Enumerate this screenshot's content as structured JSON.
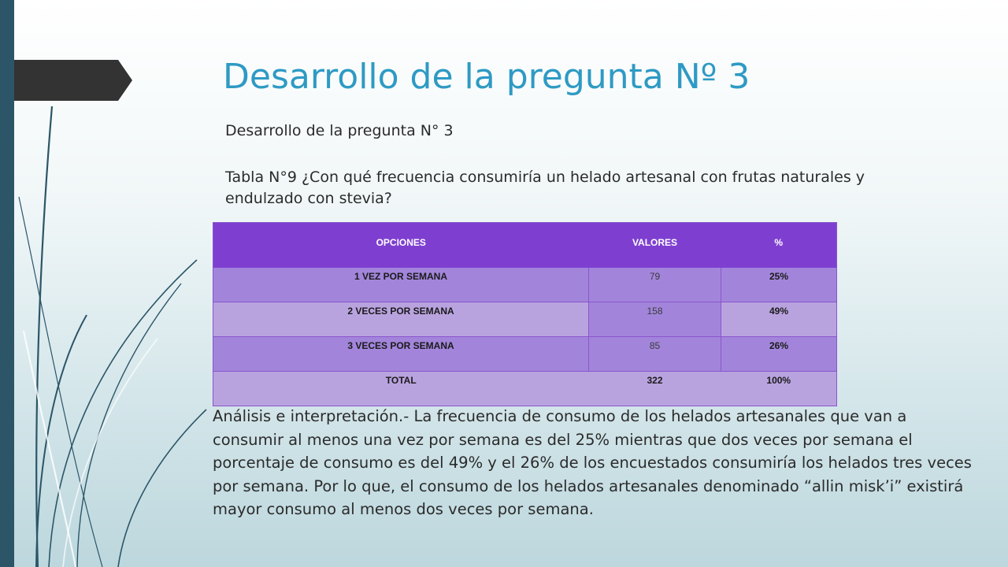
{
  "slide": {
    "title": "Desarrollo de la pregunta Nº 3",
    "subtitle": "Desarrollo de la pregunta N° 3",
    "caption": "Tabla N°9  ¿Con qué frecuencia consumiría un helado artesanal con frutas naturales y endulzado con stevia?"
  },
  "table": {
    "headers": [
      "OPCIONES",
      "VALORES",
      "%"
    ],
    "rows": [
      {
        "option": "1 VEZ POR SEMANA",
        "value": "79",
        "percent": "25%"
      },
      {
        "option": "2 VECES POR SEMANA",
        "value": "158",
        "percent": "49%"
      },
      {
        "option": "3 VECES POR SEMANA",
        "value": "85",
        "percent": "26%"
      }
    ],
    "total": {
      "label": "TOTAL",
      "value": "322",
      "percent": "100%"
    }
  },
  "analysis": "Análisis e interpretación.- La frecuencia de consumo de los helados artesanales que van a consumir al menos una vez por semana es del 25% mientras que dos veces por semana el porcentaje de consumo es del 49% y el 26% de los encuestados consumiría los helados tres veces por semana. Por lo que, el consumo de los helados artesanales denominado “allin  misk’i” existirá mayor consumo al menos dos veces por semana.",
  "colors": {
    "title": "#2e9ac4",
    "table_header": "#7e3fd1",
    "row_dark": "#a285db",
    "row_light": "#b9a3df",
    "left_bar": "#2c5568",
    "arrow": "#333333"
  }
}
